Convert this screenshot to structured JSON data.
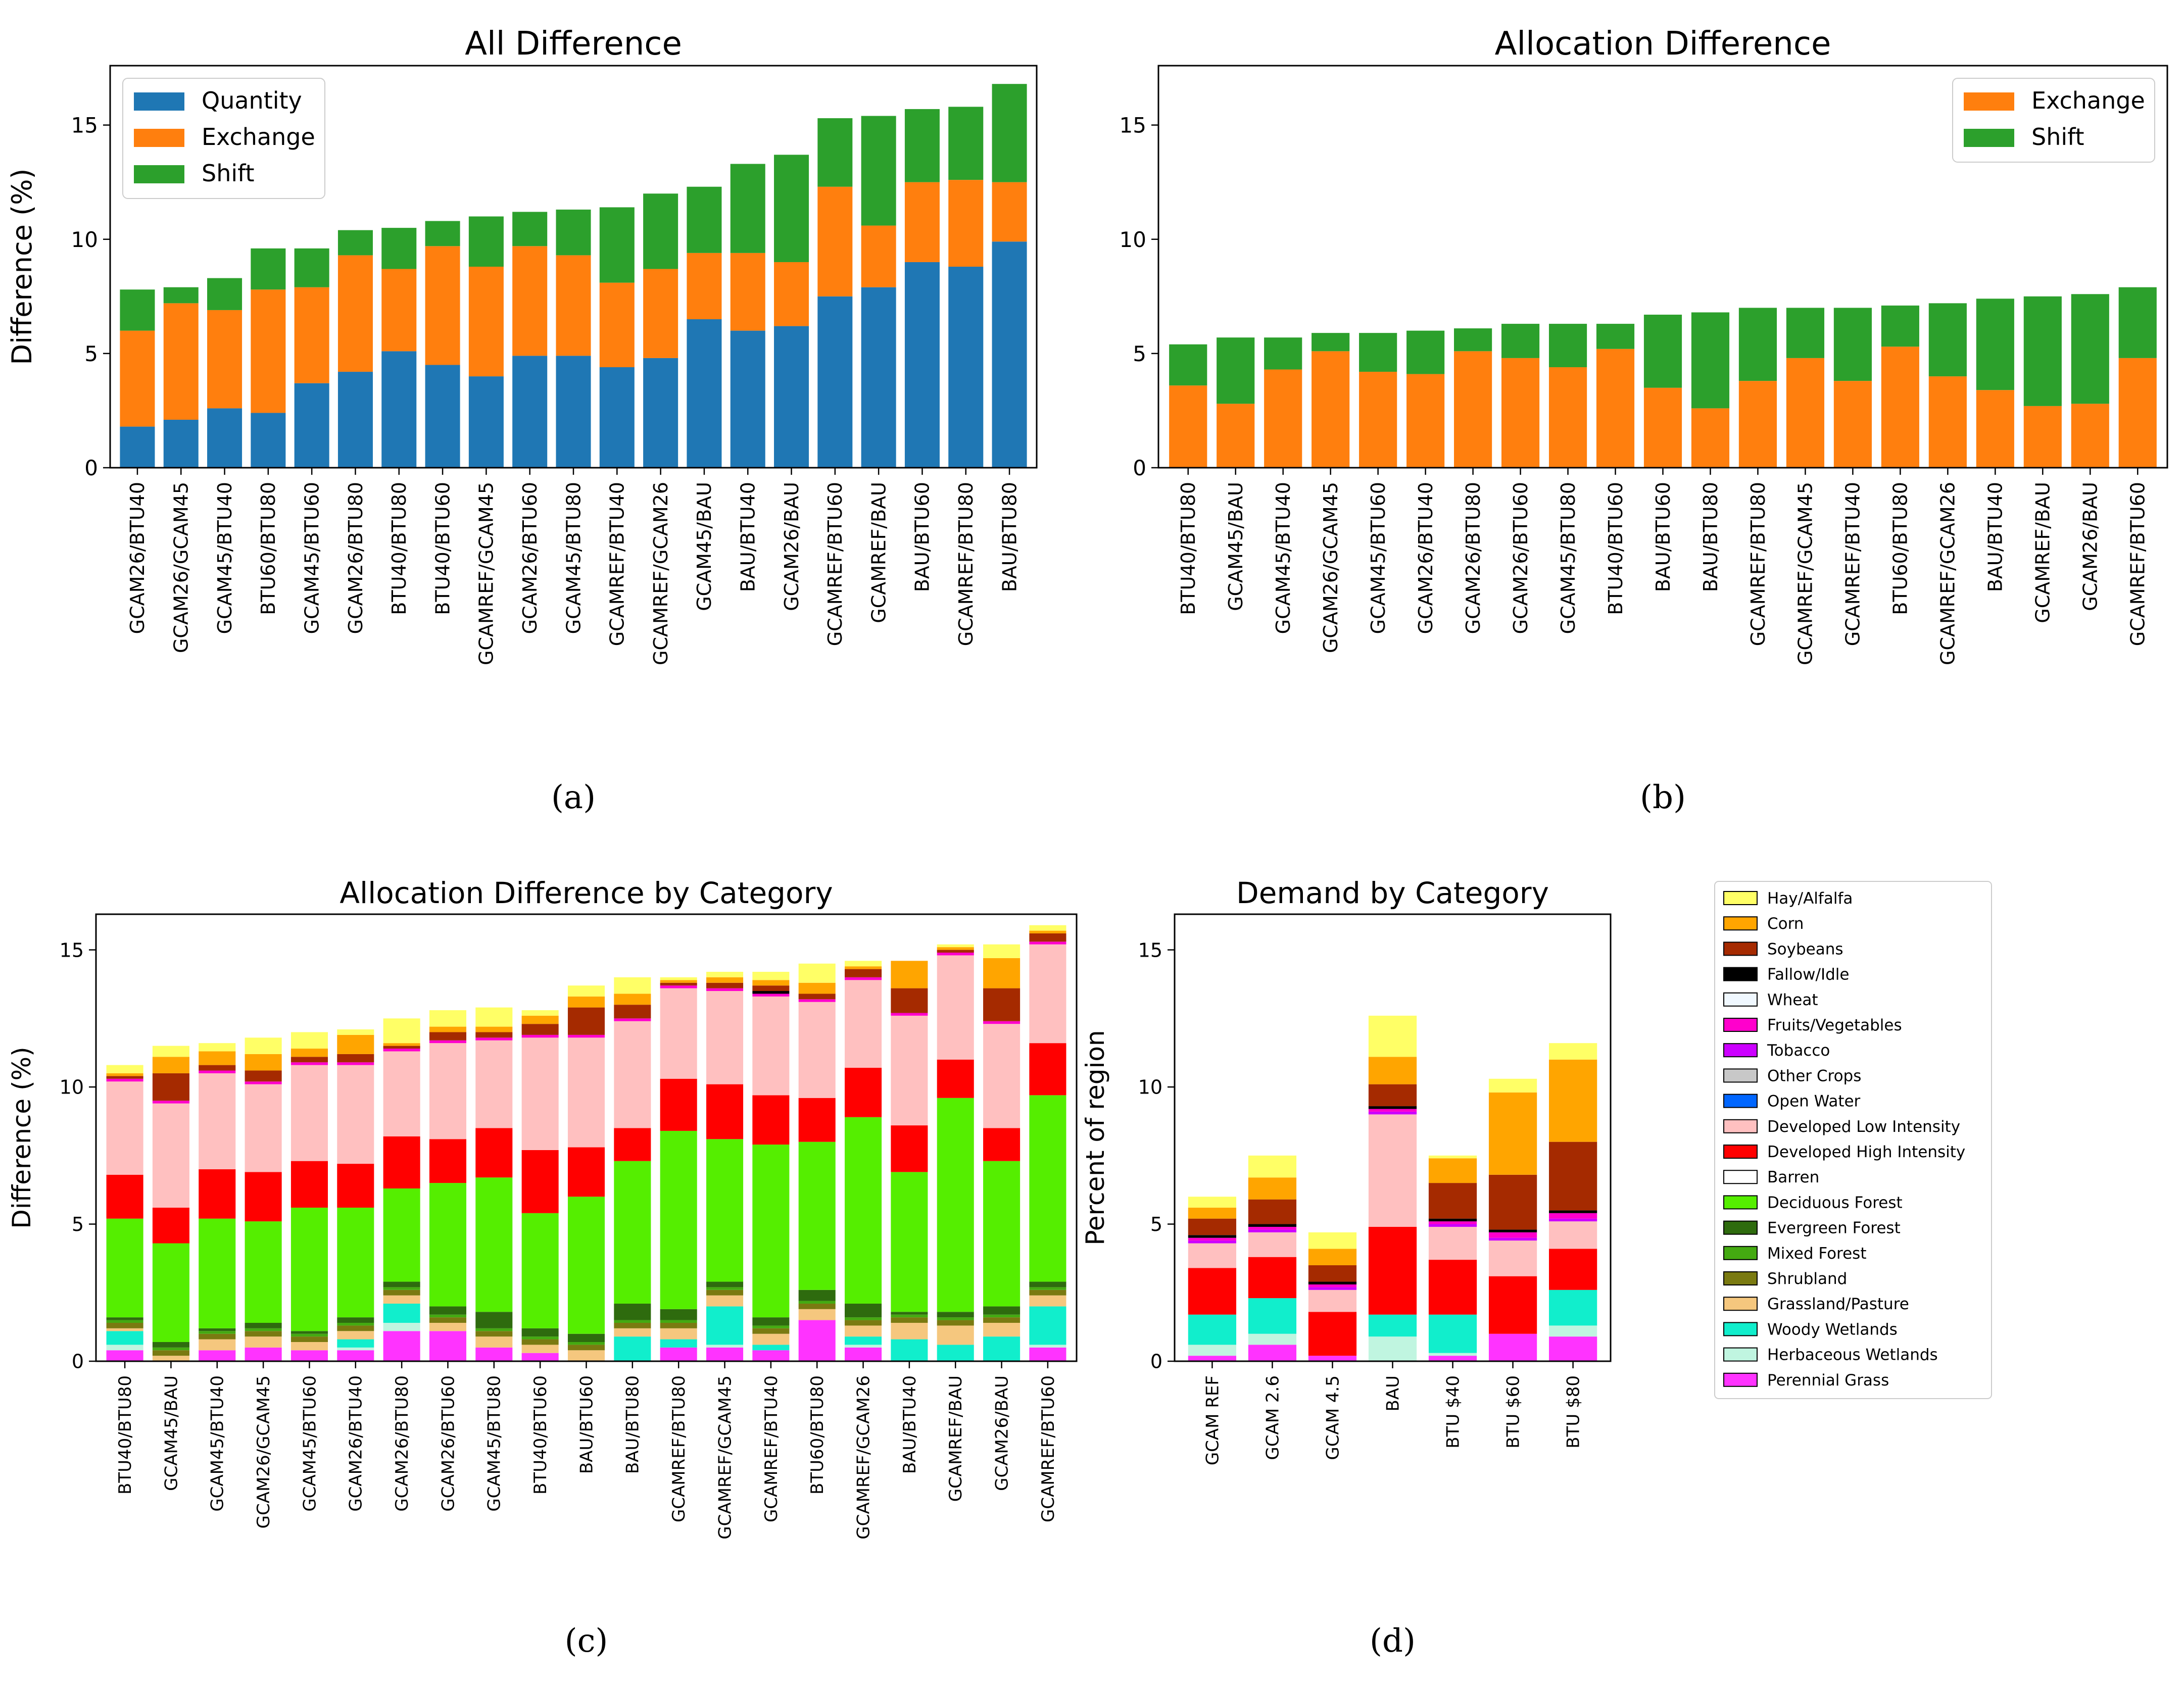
{
  "figure": {
    "category_colors": {
      "Hay/Alfalfa": "#ffff66",
      "Corn": "#ffa500",
      "Soybeans": "#a52a00",
      "Fallow/Idle": "#000000",
      "Wheat": "#f0f8ff",
      "Fruits/Vegetables": "#ff00cc",
      "Tobacco": "#cc00ff",
      "Other Crops": "#c8c8c8",
      "Open Water": "#0066ff",
      "Developed Low Intensity": "#ffc0c0",
      "Developed High Intensity": "#ff0000",
      "Barren": "#ffffff",
      "Deciduous Forest": "#55ee00",
      "Evergreen Forest": "#2e6b0e",
      "Mixed Forest": "#44aa11",
      "Shrubland": "#7a7a11",
      "Grassland/Pasture": "#f5c77e",
      "Woody Wetlands": "#11eecc",
      "Herbaceous Wetlands": "#c0f5e0",
      "Perennial Grass": "#ff33ff"
    }
  },
  "chart_data": [
    {
      "id": "a",
      "type": "bar",
      "stacked": true,
      "title": "All Difference",
      "panel_label": "(a)",
      "xlabel": "",
      "ylabel": "Difference (%)",
      "ylim": [
        0,
        17.6
      ],
      "yticks": [
        0,
        5,
        10,
        15
      ],
      "legend_position": "top-left",
      "categories": [
        "GCAM26/BTU40",
        "GCAM26/GCAM45",
        "GCAM45/BTU40",
        "BTU60/BTU80",
        "GCAM45/BTU60",
        "GCAM26/BTU80",
        "BTU40/BTU80",
        "BTU40/BTU60",
        "GCAMREF/GCAM45",
        "GCAM26/BTU60",
        "GCAM45/BTU80",
        "GCAMREF/BTU40",
        "GCAMREF/GCAM26",
        "GCAM45/BAU",
        "BAU/BTU40",
        "GCAM26/BAU",
        "GCAMREF/BTU60",
        "GCAMREF/BAU",
        "BAU/BTU60",
        "GCAMREF/BTU80",
        "BAU/BTU80"
      ],
      "series": [
        {
          "name": "Quantity",
          "color": "#1f77b4",
          "values": [
            1.8,
            2.1,
            2.6,
            2.4,
            3.7,
            4.2,
            5.1,
            4.5,
            4.0,
            4.9,
            4.9,
            4.4,
            4.8,
            6.5,
            6.0,
            6.2,
            7.5,
            7.9,
            9.0,
            8.8,
            9.9
          ]
        },
        {
          "name": "Exchange",
          "color": "#ff7f0e",
          "values": [
            4.2,
            5.1,
            4.3,
            5.4,
            4.2,
            5.1,
            3.6,
            5.2,
            4.8,
            4.8,
            4.4,
            3.7,
            3.9,
            2.9,
            3.4,
            2.8,
            4.8,
            2.7,
            3.5,
            3.8,
            2.6
          ]
        },
        {
          "name": "Shift",
          "color": "#2ca02c",
          "values": [
            1.8,
            0.7,
            1.4,
            1.8,
            1.7,
            1.1,
            1.8,
            1.1,
            2.2,
            1.5,
            2.0,
            3.3,
            3.3,
            2.9,
            3.9,
            4.7,
            3.0,
            4.8,
            3.2,
            3.2,
            4.3
          ]
        }
      ]
    },
    {
      "id": "b",
      "type": "bar",
      "stacked": true,
      "title": "Allocation Difference",
      "panel_label": "(b)",
      "xlabel": "",
      "ylabel": "",
      "ylim": [
        0,
        17.6
      ],
      "yticks": [
        0,
        5,
        10,
        15
      ],
      "legend_position": "top-right",
      "categories": [
        "BTU40/BTU80",
        "GCAM45/BAU",
        "GCAM45/BTU40",
        "GCAM26/GCAM45",
        "GCAM45/BTU60",
        "GCAM26/BTU40",
        "GCAM26/BTU80",
        "GCAM26/BTU60",
        "GCAM45/BTU80",
        "BTU40/BTU60",
        "BAU/BTU60",
        "BAU/BTU80",
        "GCAMREF/BTU80",
        "GCAMREF/GCAM45",
        "GCAMREF/BTU40",
        "BTU60/BTU80",
        "GCAMREF/GCAM26",
        "BAU/BTU40",
        "GCAMREF/BAU",
        "GCAM26/BAU",
        "GCAMREF/BTU60"
      ],
      "series": [
        {
          "name": "Exchange",
          "color": "#ff7f0e",
          "values": [
            3.6,
            2.8,
            4.3,
            5.1,
            4.2,
            4.1,
            5.1,
            4.8,
            4.4,
            5.2,
            3.5,
            2.6,
            3.8,
            4.8,
            3.8,
            5.3,
            4.0,
            3.4,
            2.7,
            2.8,
            4.8
          ]
        },
        {
          "name": "Shift",
          "color": "#2ca02c",
          "values": [
            1.8,
            2.9,
            1.4,
            0.8,
            1.7,
            1.9,
            1.0,
            1.5,
            1.9,
            1.1,
            3.2,
            4.2,
            3.2,
            2.2,
            3.2,
            1.8,
            3.2,
            4.0,
            4.8,
            4.8,
            3.1
          ]
        }
      ]
    },
    {
      "id": "c",
      "type": "bar",
      "stacked": true,
      "title": "Allocation Difference by Category",
      "panel_label": "(c)",
      "xlabel": "",
      "ylabel": "Difference (%)",
      "ylim": [
        0,
        16.3
      ],
      "yticks": [
        0,
        5,
        10,
        15
      ],
      "categories": [
        "BTU40/BTU80",
        "GCAM45/BAU",
        "GCAM45/BTU40",
        "GCAM26/GCAM45",
        "GCAM45/BTU60",
        "GCAM26/BTU40",
        "GCAM26/BTU80",
        "GCAM26/BTU60",
        "GCAM45/BTU80",
        "BTU40/BTU60",
        "BAU/BTU60",
        "BAU/BTU80",
        "GCAMREF/BTU80",
        "GCAMREF/GCAM45",
        "GCAMREF/BTU40",
        "BTU60/BTU80",
        "GCAMREF/GCAM26",
        "BAU/BTU40",
        "GCAMREF/BAU",
        "GCAM26/BAU",
        "GCAMREF/BTU60"
      ],
      "series": [
        {
          "name": "Perennial Grass",
          "values": [
            0.4,
            0.0,
            0.4,
            0.5,
            0.4,
            0.4,
            1.1,
            1.1,
            0.5,
            0.3,
            0.0,
            0.0,
            0.5,
            0.5,
            0.4,
            1.5,
            0.5,
            0.0,
            0.0,
            0.0,
            0.5
          ]
        },
        {
          "name": "Herbaceous Wetlands",
          "values": [
            0.2,
            0.0,
            0.0,
            0.0,
            0.0,
            0.1,
            0.3,
            0.0,
            0.0,
            0.0,
            0.0,
            0.0,
            0.0,
            0.1,
            0.0,
            0.0,
            0.1,
            0.0,
            0.0,
            0.0,
            0.1
          ]
        },
        {
          "name": "Woody Wetlands",
          "values": [
            0.5,
            0.0,
            0.0,
            0.0,
            0.0,
            0.3,
            0.7,
            0.0,
            0.0,
            0.0,
            0.0,
            0.9,
            0.3,
            1.4,
            0.2,
            0.0,
            0.3,
            0.8,
            0.6,
            0.9,
            1.4
          ]
        },
        {
          "name": "Grassland/Pasture",
          "values": [
            0.1,
            0.2,
            0.4,
            0.4,
            0.3,
            0.3,
            0.3,
            0.3,
            0.4,
            0.3,
            0.4,
            0.3,
            0.4,
            0.4,
            0.4,
            0.4,
            0.4,
            0.6,
            0.7,
            0.5,
            0.4
          ]
        },
        {
          "name": "Shrubland",
          "values": [
            0.2,
            0.2,
            0.2,
            0.2,
            0.2,
            0.2,
            0.2,
            0.2,
            0.2,
            0.2,
            0.2,
            0.2,
            0.2,
            0.2,
            0.2,
            0.2,
            0.2,
            0.2,
            0.2,
            0.2,
            0.2
          ]
        },
        {
          "name": "Mixed Forest",
          "values": [
            0.1,
            0.1,
            0.1,
            0.1,
            0.1,
            0.1,
            0.1,
            0.1,
            0.1,
            0.1,
            0.1,
            0.1,
            0.1,
            0.1,
            0.1,
            0.1,
            0.1,
            0.1,
            0.1,
            0.1,
            0.1
          ]
        },
        {
          "name": "Evergreen Forest",
          "values": [
            0.1,
            0.2,
            0.1,
            0.2,
            0.1,
            0.2,
            0.2,
            0.3,
            0.6,
            0.3,
            0.3,
            0.6,
            0.4,
            0.2,
            0.3,
            0.4,
            0.5,
            0.1,
            0.2,
            0.3,
            0.2
          ]
        },
        {
          "name": "Deciduous Forest",
          "values": [
            3.6,
            3.6,
            4.0,
            3.7,
            4.5,
            4.0,
            3.4,
            4.5,
            4.9,
            4.2,
            5.0,
            5.2,
            6.5,
            5.2,
            6.3,
            5.4,
            6.8,
            5.1,
            7.8,
            5.3,
            6.8
          ]
        },
        {
          "name": "Developed High Intensity",
          "values": [
            1.6,
            1.3,
            1.8,
            1.8,
            1.7,
            1.6,
            1.9,
            1.6,
            1.8,
            2.3,
            1.8,
            1.2,
            1.9,
            2.0,
            1.8,
            1.6,
            1.8,
            1.7,
            1.4,
            1.2,
            1.9
          ]
        },
        {
          "name": "Barren",
          "values": [
            0.0,
            0.0,
            0.0,
            0.0,
            0.0,
            0.0,
            0.0,
            0.0,
            0.0,
            0.0,
            0.0,
            0.0,
            0.0,
            0.0,
            0.0,
            0.0,
            0.0,
            0.0,
            0.0,
            0.0,
            0.0
          ]
        },
        {
          "name": "Developed Low Intensity",
          "values": [
            3.4,
            3.8,
            3.5,
            3.2,
            3.5,
            3.6,
            3.1,
            3.5,
            3.2,
            4.1,
            4.0,
            3.9,
            3.3,
            3.4,
            3.6,
            3.5,
            3.2,
            4.0,
            3.8,
            3.8,
            3.6
          ]
        },
        {
          "name": "Open Water",
          "values": [
            0.0,
            0.0,
            0.0,
            0.0,
            0.0,
            0.0,
            0.0,
            0.0,
            0.0,
            0.0,
            0.0,
            0.0,
            0.0,
            0.0,
            0.0,
            0.0,
            0.0,
            0.0,
            0.0,
            0.0,
            0.0
          ]
        },
        {
          "name": "Other Crops",
          "values": [
            0.0,
            0.0,
            0.0,
            0.0,
            0.0,
            0.0,
            0.0,
            0.0,
            0.0,
            0.0,
            0.0,
            0.0,
            0.0,
            0.0,
            0.0,
            0.0,
            0.0,
            0.0,
            0.0,
            0.0,
            0.0
          ]
        },
        {
          "name": "Tobacco",
          "values": [
            0.0,
            0.0,
            0.0,
            0.0,
            0.0,
            0.0,
            0.0,
            0.0,
            0.0,
            0.0,
            0.0,
            0.0,
            0.0,
            0.0,
            0.0,
            0.0,
            0.0,
            0.0,
            0.0,
            0.0,
            0.0
          ]
        },
        {
          "name": "Fruits/Vegetables",
          "values": [
            0.1,
            0.1,
            0.1,
            0.1,
            0.1,
            0.1,
            0.1,
            0.1,
            0.1,
            0.1,
            0.1,
            0.1,
            0.1,
            0.1,
            0.1,
            0.1,
            0.1,
            0.1,
            0.1,
            0.1,
            0.1
          ]
        },
        {
          "name": "Wheat",
          "values": [
            0.0,
            0.0,
            0.0,
            0.0,
            0.0,
            0.0,
            0.0,
            0.0,
            0.0,
            0.0,
            0.0,
            0.0,
            0.0,
            0.0,
            0.0,
            0.0,
            0.0,
            0.0,
            0.0,
            0.0,
            0.0
          ]
        },
        {
          "name": "Fallow/Idle",
          "values": [
            0.0,
            0.0,
            0.0,
            0.0,
            0.0,
            0.0,
            0.0,
            0.0,
            0.0,
            0.0,
            0.0,
            0.0,
            0.0,
            0.0,
            0.1,
            0.0,
            0.0,
            0.0,
            0.0,
            0.0,
            0.0
          ]
        },
        {
          "name": "Soybeans",
          "values": [
            0.1,
            1.0,
            0.2,
            0.4,
            0.2,
            0.3,
            0.1,
            0.3,
            0.2,
            0.4,
            1.0,
            0.5,
            0.1,
            0.2,
            0.2,
            0.2,
            0.3,
            0.9,
            0.1,
            1.2,
            0.3
          ]
        },
        {
          "name": "Corn",
          "values": [
            0.1,
            0.6,
            0.5,
            0.6,
            0.3,
            0.7,
            0.1,
            0.2,
            0.2,
            0.3,
            0.4,
            0.4,
            0.1,
            0.2,
            0.2,
            0.4,
            0.1,
            1.0,
            0.1,
            1.1,
            0.1
          ]
        },
        {
          "name": "Hay/Alfalfa",
          "values": [
            0.3,
            0.4,
            0.3,
            0.6,
            0.6,
            0.2,
            0.9,
            0.6,
            0.7,
            0.2,
            0.4,
            0.6,
            0.1,
            0.2,
            0.3,
            0.7,
            0.2,
            0.0,
            0.1,
            0.5,
            0.2
          ]
        }
      ]
    },
    {
      "id": "d",
      "type": "bar",
      "stacked": true,
      "title": "Demand by Category",
      "panel_label": "(d)",
      "xlabel": "",
      "ylabel": "Percent of region",
      "ylim": [
        0,
        16.3
      ],
      "yticks": [
        0,
        5,
        10,
        15
      ],
      "legend_position": "right",
      "categories": [
        "GCAM REF",
        "GCAM 2.6",
        "GCAM 4.5",
        "BAU",
        "BTU $40",
        "BTU $60",
        "BTU $80"
      ],
      "series": [
        {
          "name": "Perennial Grass",
          "values": [
            0.2,
            0.6,
            0.2,
            0.0,
            0.2,
            1.0,
            0.9
          ]
        },
        {
          "name": "Herbaceous Wetlands",
          "values": [
            0.4,
            0.4,
            0.0,
            0.9,
            0.1,
            0.0,
            0.4
          ]
        },
        {
          "name": "Woody Wetlands",
          "values": [
            1.1,
            1.3,
            0.0,
            0.8,
            1.4,
            0.0,
            1.3
          ]
        },
        {
          "name": "Grassland/Pasture",
          "values": [
            0.0,
            0.0,
            0.0,
            0.0,
            0.0,
            0.0,
            0.0
          ]
        },
        {
          "name": "Shrubland",
          "values": [
            0.0,
            0.0,
            0.0,
            0.0,
            0.0,
            0.0,
            0.0
          ]
        },
        {
          "name": "Mixed Forest",
          "values": [
            0.0,
            0.0,
            0.0,
            0.0,
            0.0,
            0.0,
            0.0
          ]
        },
        {
          "name": "Evergreen Forest",
          "values": [
            0.0,
            0.0,
            0.0,
            0.0,
            0.0,
            0.0,
            0.0
          ]
        },
        {
          "name": "Deciduous Forest",
          "values": [
            0.0,
            0.0,
            0.0,
            0.0,
            0.0,
            0.0,
            0.0
          ]
        },
        {
          "name": "Developed High Intensity",
          "values": [
            1.7,
            1.5,
            1.6,
            3.2,
            2.0,
            2.1,
            1.5
          ]
        },
        {
          "name": "Barren",
          "values": [
            0.0,
            0.0,
            0.0,
            0.0,
            0.0,
            0.0,
            0.0
          ]
        },
        {
          "name": "Developed Low Intensity",
          "values": [
            0.9,
            0.9,
            0.8,
            4.1,
            1.2,
            1.3,
            1.0
          ]
        },
        {
          "name": "Open Water",
          "values": [
            0.0,
            0.0,
            0.0,
            0.0,
            0.0,
            0.0,
            0.0
          ]
        },
        {
          "name": "Other Crops",
          "values": [
            0.0,
            0.0,
            0.0,
            0.0,
            0.0,
            0.0,
            0.0
          ]
        },
        {
          "name": "Tobacco",
          "values": [
            0.1,
            0.1,
            0.1,
            0.1,
            0.1,
            0.1,
            0.1
          ]
        },
        {
          "name": "Fruits/Vegetables",
          "values": [
            0.1,
            0.1,
            0.1,
            0.1,
            0.1,
            0.2,
            0.2
          ]
        },
        {
          "name": "Wheat",
          "values": [
            0.0,
            0.0,
            0.0,
            0.0,
            0.0,
            0.0,
            0.0
          ]
        },
        {
          "name": "Fallow/Idle",
          "values": [
            0.1,
            0.1,
            0.1,
            0.1,
            0.1,
            0.1,
            0.1
          ]
        },
        {
          "name": "Soybeans",
          "values": [
            0.6,
            0.9,
            0.6,
            0.8,
            1.3,
            2.0,
            2.5
          ]
        },
        {
          "name": "Corn",
          "values": [
            0.4,
            0.8,
            0.6,
            1.0,
            0.9,
            3.0,
            3.0
          ]
        },
        {
          "name": "Hay/Alfalfa",
          "values": [
            0.4,
            0.8,
            0.6,
            1.5,
            0.1,
            0.5,
            0.6
          ]
        }
      ]
    }
  ],
  "category_legend": {
    "entries": [
      "Hay/Alfalfa",
      "Corn",
      "Soybeans",
      "Fallow/Idle",
      "Wheat",
      "Fruits/Vegetables",
      "Tobacco",
      "Other Crops",
      "Open Water",
      "Developed Low Intensity",
      "Developed High Intensity",
      "Barren",
      "Deciduous Forest",
      "Evergreen Forest",
      "Mixed Forest",
      "Shrubland",
      "Grassland/Pasture",
      "Woody Wetlands",
      "Herbaceous Wetlands",
      "Perennial Grass"
    ]
  }
}
